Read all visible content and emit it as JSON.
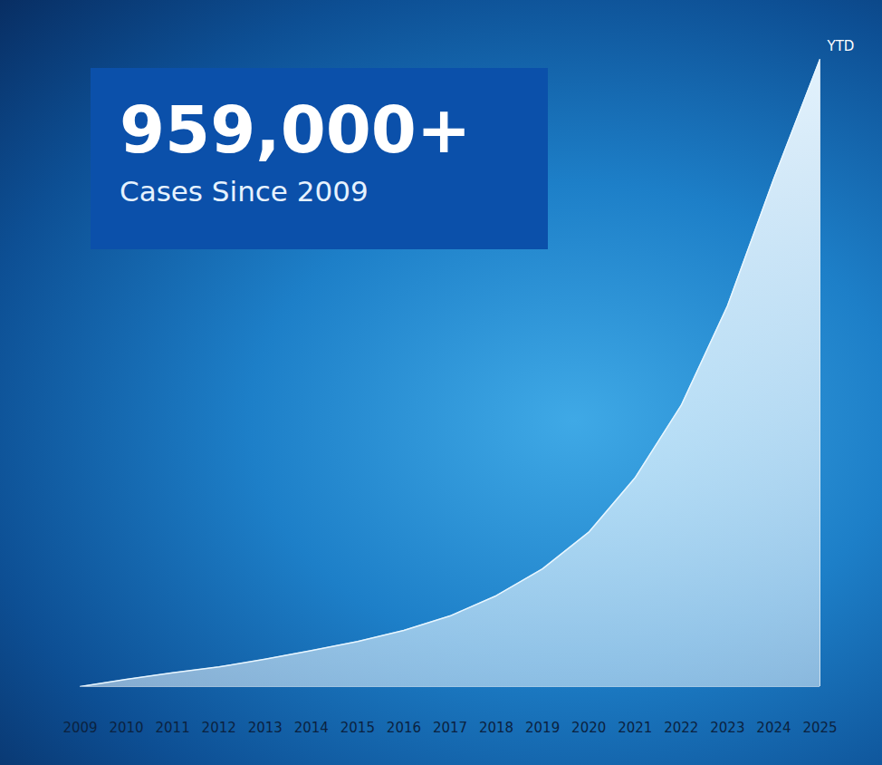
{
  "chart_data": {
    "type": "area",
    "title": "959,000+",
    "subtitle": "Cases Since 2009",
    "x": [
      2009,
      2010,
      2011,
      2012,
      2013,
      2014,
      2015,
      2016,
      2017,
      2018,
      2019,
      2020,
      2021,
      2022,
      2023,
      2024,
      2025
    ],
    "values": [
      0,
      11000,
      21000,
      30000,
      42000,
      55000,
      69000,
      86000,
      108000,
      139000,
      180000,
      236000,
      319000,
      430000,
      582000,
      776000,
      959000
    ],
    "color": "#e8f6ff",
    "xlim": [
      2009,
      2025
    ],
    "xticks": [
      2009,
      2010,
      2011,
      2012,
      2013,
      2014,
      2015,
      2016,
      2017,
      2018,
      2019,
      2020,
      2021,
      2022,
      2023,
      2024,
      2025
    ],
    "ylim": [
      0,
      959000
    ],
    "tick_labels": "x",
    "grid": false,
    "annotations": [
      {
        "x": 2025,
        "text": "YTD"
      }
    ]
  }
}
